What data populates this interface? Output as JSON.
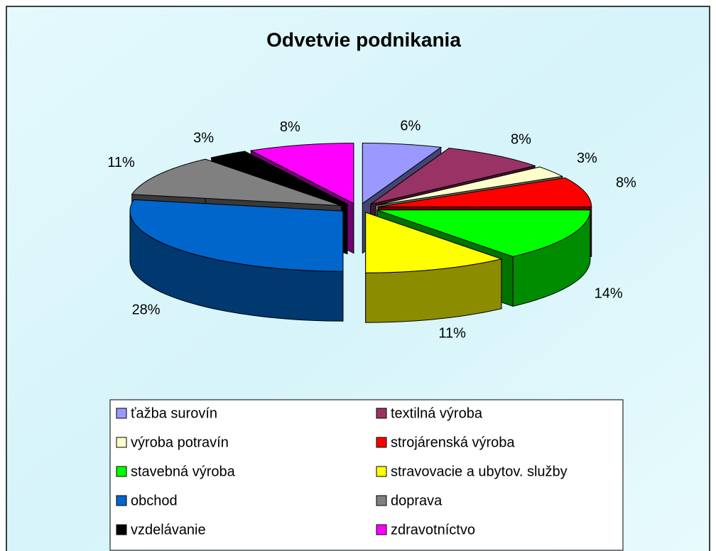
{
  "chart_data": {
    "type": "pie3d",
    "title": "Odvetvie podnikania",
    "categories": [
      "ťažba surovín",
      "textilná výroba",
      "výroba potravín",
      "strojárenská výroba",
      "stavebná výroba",
      "stravovacie a ubytov. služby",
      "obchod",
      "doprava",
      "vzdelávanie",
      "zdravotníctvo"
    ],
    "values": [
      6,
      8,
      3,
      8,
      14,
      11,
      28,
      11,
      3,
      8
    ],
    "value_labels": [
      "6%",
      "8%",
      "3%",
      "8%",
      "14%",
      "11%",
      "28%",
      "11%",
      "3%",
      "8%"
    ],
    "colors": [
      "#9999ff",
      "#993366",
      "#ffffcc",
      "#ff0000",
      "#00ff00",
      "#ffff00",
      "#0066cc",
      "#808080",
      "#000000",
      "#ff00ff"
    ],
    "legend": "bottom"
  }
}
